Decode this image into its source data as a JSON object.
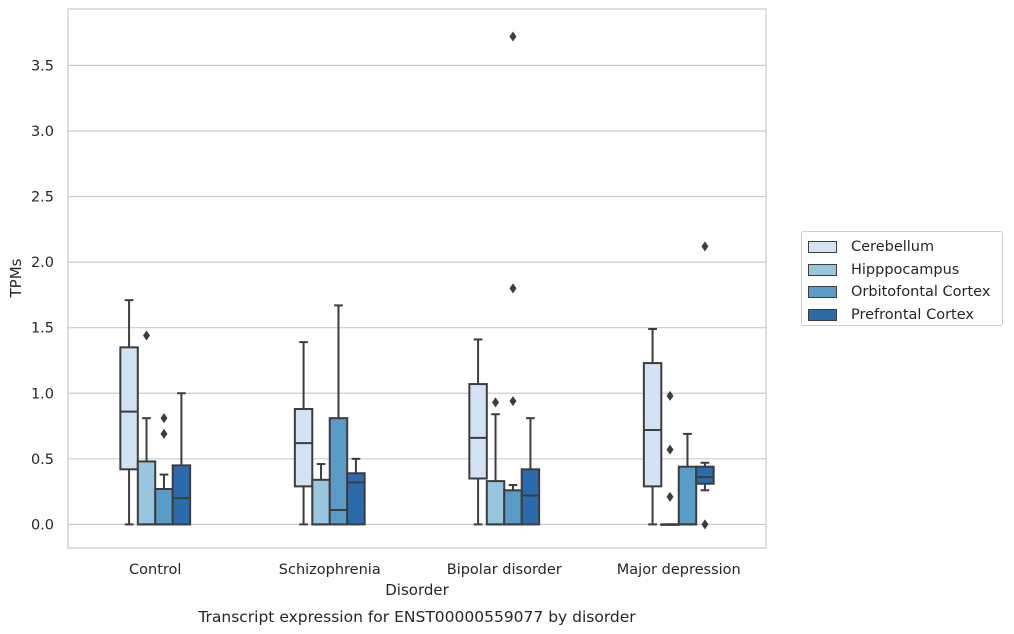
{
  "chart_data": {
    "type": "box",
    "title": "Transcript expression for ENST00000559077 by disorder",
    "xlabel": "Disorder",
    "ylabel": "TPMs",
    "ylim": [
      -0.18,
      3.93
    ],
    "yticks": [
      0.0,
      0.5,
      1.0,
      1.5,
      2.0,
      2.5,
      3.0,
      3.5
    ],
    "ytick_labels": [
      "0.0",
      "0.5",
      "1.0",
      "1.5",
      "2.0",
      "2.5",
      "3.0",
      "3.5"
    ],
    "grid": "horizontal",
    "legend_position": "right",
    "categories": [
      "Control",
      "Schizophrenia",
      "Bipolar disorder",
      "Major depression"
    ],
    "series": [
      {
        "name": "Cerebellum",
        "color": "#d3e3f3",
        "boxes": [
          {
            "whisker_low": 0.0,
            "q1": 0.42,
            "median": 0.86,
            "q3": 1.35,
            "whisker_high": 1.71,
            "outliers": []
          },
          {
            "whisker_low": 0.0,
            "q1": 0.29,
            "median": 0.62,
            "q3": 0.88,
            "whisker_high": 1.39,
            "outliers": []
          },
          {
            "whisker_low": 0.0,
            "q1": 0.35,
            "median": 0.66,
            "q3": 1.07,
            "whisker_high": 1.41,
            "outliers": []
          },
          {
            "whisker_low": 0.0,
            "q1": 0.29,
            "median": 0.72,
            "q3": 1.23,
            "whisker_high": 1.49,
            "outliers": []
          }
        ]
      },
      {
        "name": "Hipppocampus",
        "color": "#9ac5de",
        "boxes": [
          {
            "whisker_low": 0.0,
            "q1": 0.0,
            "median": 0.0,
            "q3": 0.48,
            "whisker_high": 0.81,
            "outliers": [
              1.44
            ]
          },
          {
            "whisker_low": 0.0,
            "q1": 0.0,
            "median": 0.0,
            "q3": 0.34,
            "whisker_high": 0.46,
            "outliers": []
          },
          {
            "whisker_low": 0.0,
            "q1": 0.0,
            "median": 0.0,
            "q3": 0.33,
            "whisker_high": 0.84,
            "outliers": [
              0.93
            ]
          },
          {
            "whisker_low": 0.0,
            "q1": 0.0,
            "median": 0.0,
            "q3": 0.0,
            "whisker_high": 0.0,
            "outliers": [
              0.98,
              0.57,
              0.21
            ]
          }
        ]
      },
      {
        "name": "Orbitofontal Cortex",
        "color": "#5b9bc8",
        "boxes": [
          {
            "whisker_low": 0.0,
            "q1": 0.0,
            "median": 0.0,
            "q3": 0.27,
            "whisker_high": 0.38,
            "outliers": [
              0.81,
              0.69
            ]
          },
          {
            "whisker_low": 0.0,
            "q1": 0.0,
            "median": 0.11,
            "q3": 0.81,
            "whisker_high": 1.67,
            "outliers": []
          },
          {
            "whisker_low": 0.0,
            "q1": 0.0,
            "median": 0.0,
            "q3": 0.26,
            "whisker_high": 0.3,
            "outliers": [
              3.72,
              1.8,
              0.94
            ]
          },
          {
            "whisker_low": 0.0,
            "q1": 0.0,
            "median": 0.0,
            "q3": 0.44,
            "whisker_high": 0.69,
            "outliers": []
          }
        ]
      },
      {
        "name": "Prefrontal Cortex",
        "color": "#2b6aab",
        "boxes": [
          {
            "whisker_low": 0.0,
            "q1": 0.0,
            "median": 0.2,
            "q3": 0.45,
            "whisker_high": 1.0,
            "outliers": []
          },
          {
            "whisker_low": 0.0,
            "q1": 0.0,
            "median": 0.32,
            "q3": 0.39,
            "whisker_high": 0.5,
            "outliers": []
          },
          {
            "whisker_low": 0.0,
            "q1": 0.0,
            "median": 0.22,
            "q3": 0.42,
            "whisker_high": 0.81,
            "outliers": []
          },
          {
            "whisker_low": 0.26,
            "q1": 0.31,
            "median": 0.36,
            "q3": 0.44,
            "whisker_high": 0.47,
            "outliers": [
              2.12,
              0.0
            ]
          }
        ]
      }
    ]
  }
}
